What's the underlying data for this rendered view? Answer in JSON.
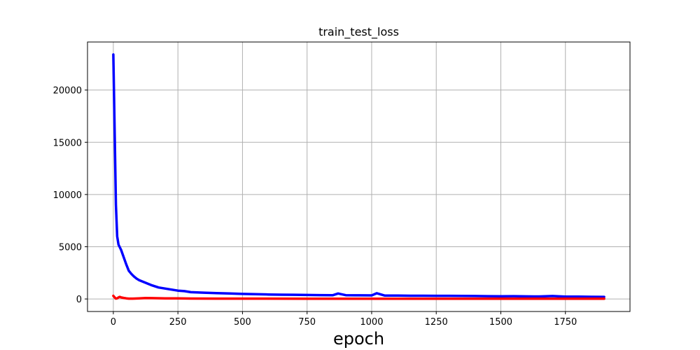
{
  "chart_data": {
    "type": "line",
    "title": "train_test_loss",
    "xlabel": "epoch",
    "ylabel": "",
    "xlim": [
      -100,
      2000
    ],
    "ylim": [
      -1200,
      24600
    ],
    "xticks": [
      0,
      250,
      500,
      750,
      1000,
      1250,
      1500,
      1750
    ],
    "yticks": [
      0,
      5000,
      10000,
      15000,
      20000
    ],
    "grid": true,
    "series": [
      {
        "color": "#0000ff",
        "x": [
          0,
          5,
          10,
          15,
          20,
          30,
          40,
          50,
          60,
          70,
          80,
          90,
          100,
          120,
          150,
          175,
          200,
          225,
          250,
          275,
          300,
          350,
          400,
          450,
          500,
          550,
          600,
          650,
          700,
          750,
          800,
          850,
          870,
          900,
          950,
          1000,
          1020,
          1050,
          1100,
          1150,
          1200,
          1250,
          1300,
          1350,
          1400,
          1450,
          1500,
          1550,
          1600,
          1650,
          1700,
          1750,
          1800,
          1850,
          1900
        ],
        "y": [
          23400,
          16000,
          9000,
          6000,
          5200,
          4700,
          4000,
          3300,
          2700,
          2400,
          2150,
          1950,
          1800,
          1600,
          1300,
          1100,
          1000,
          900,
          800,
          750,
          650,
          600,
          560,
          520,
          480,
          460,
          430,
          410,
          400,
          380,
          370,
          360,
          520,
          360,
          350,
          340,
          550,
          330,
          320,
          310,
          310,
          300,
          300,
          290,
          280,
          270,
          260,
          270,
          250,
          240,
          280,
          230,
          220,
          210,
          200
        ]
      },
      {
        "color": "#ff0000",
        "x": [
          0,
          5,
          10,
          15,
          20,
          25,
          30,
          40,
          50,
          60,
          75,
          100,
          125,
          150,
          200,
          250,
          300,
          400,
          500,
          750,
          1000,
          1250,
          1500,
          1750,
          1900
        ],
        "y": [
          300,
          150,
          30,
          60,
          150,
          200,
          150,
          100,
          60,
          30,
          30,
          60,
          90,
          80,
          60,
          50,
          40,
          35,
          30,
          25,
          25,
          20,
          20,
          20,
          20
        ]
      }
    ]
  }
}
